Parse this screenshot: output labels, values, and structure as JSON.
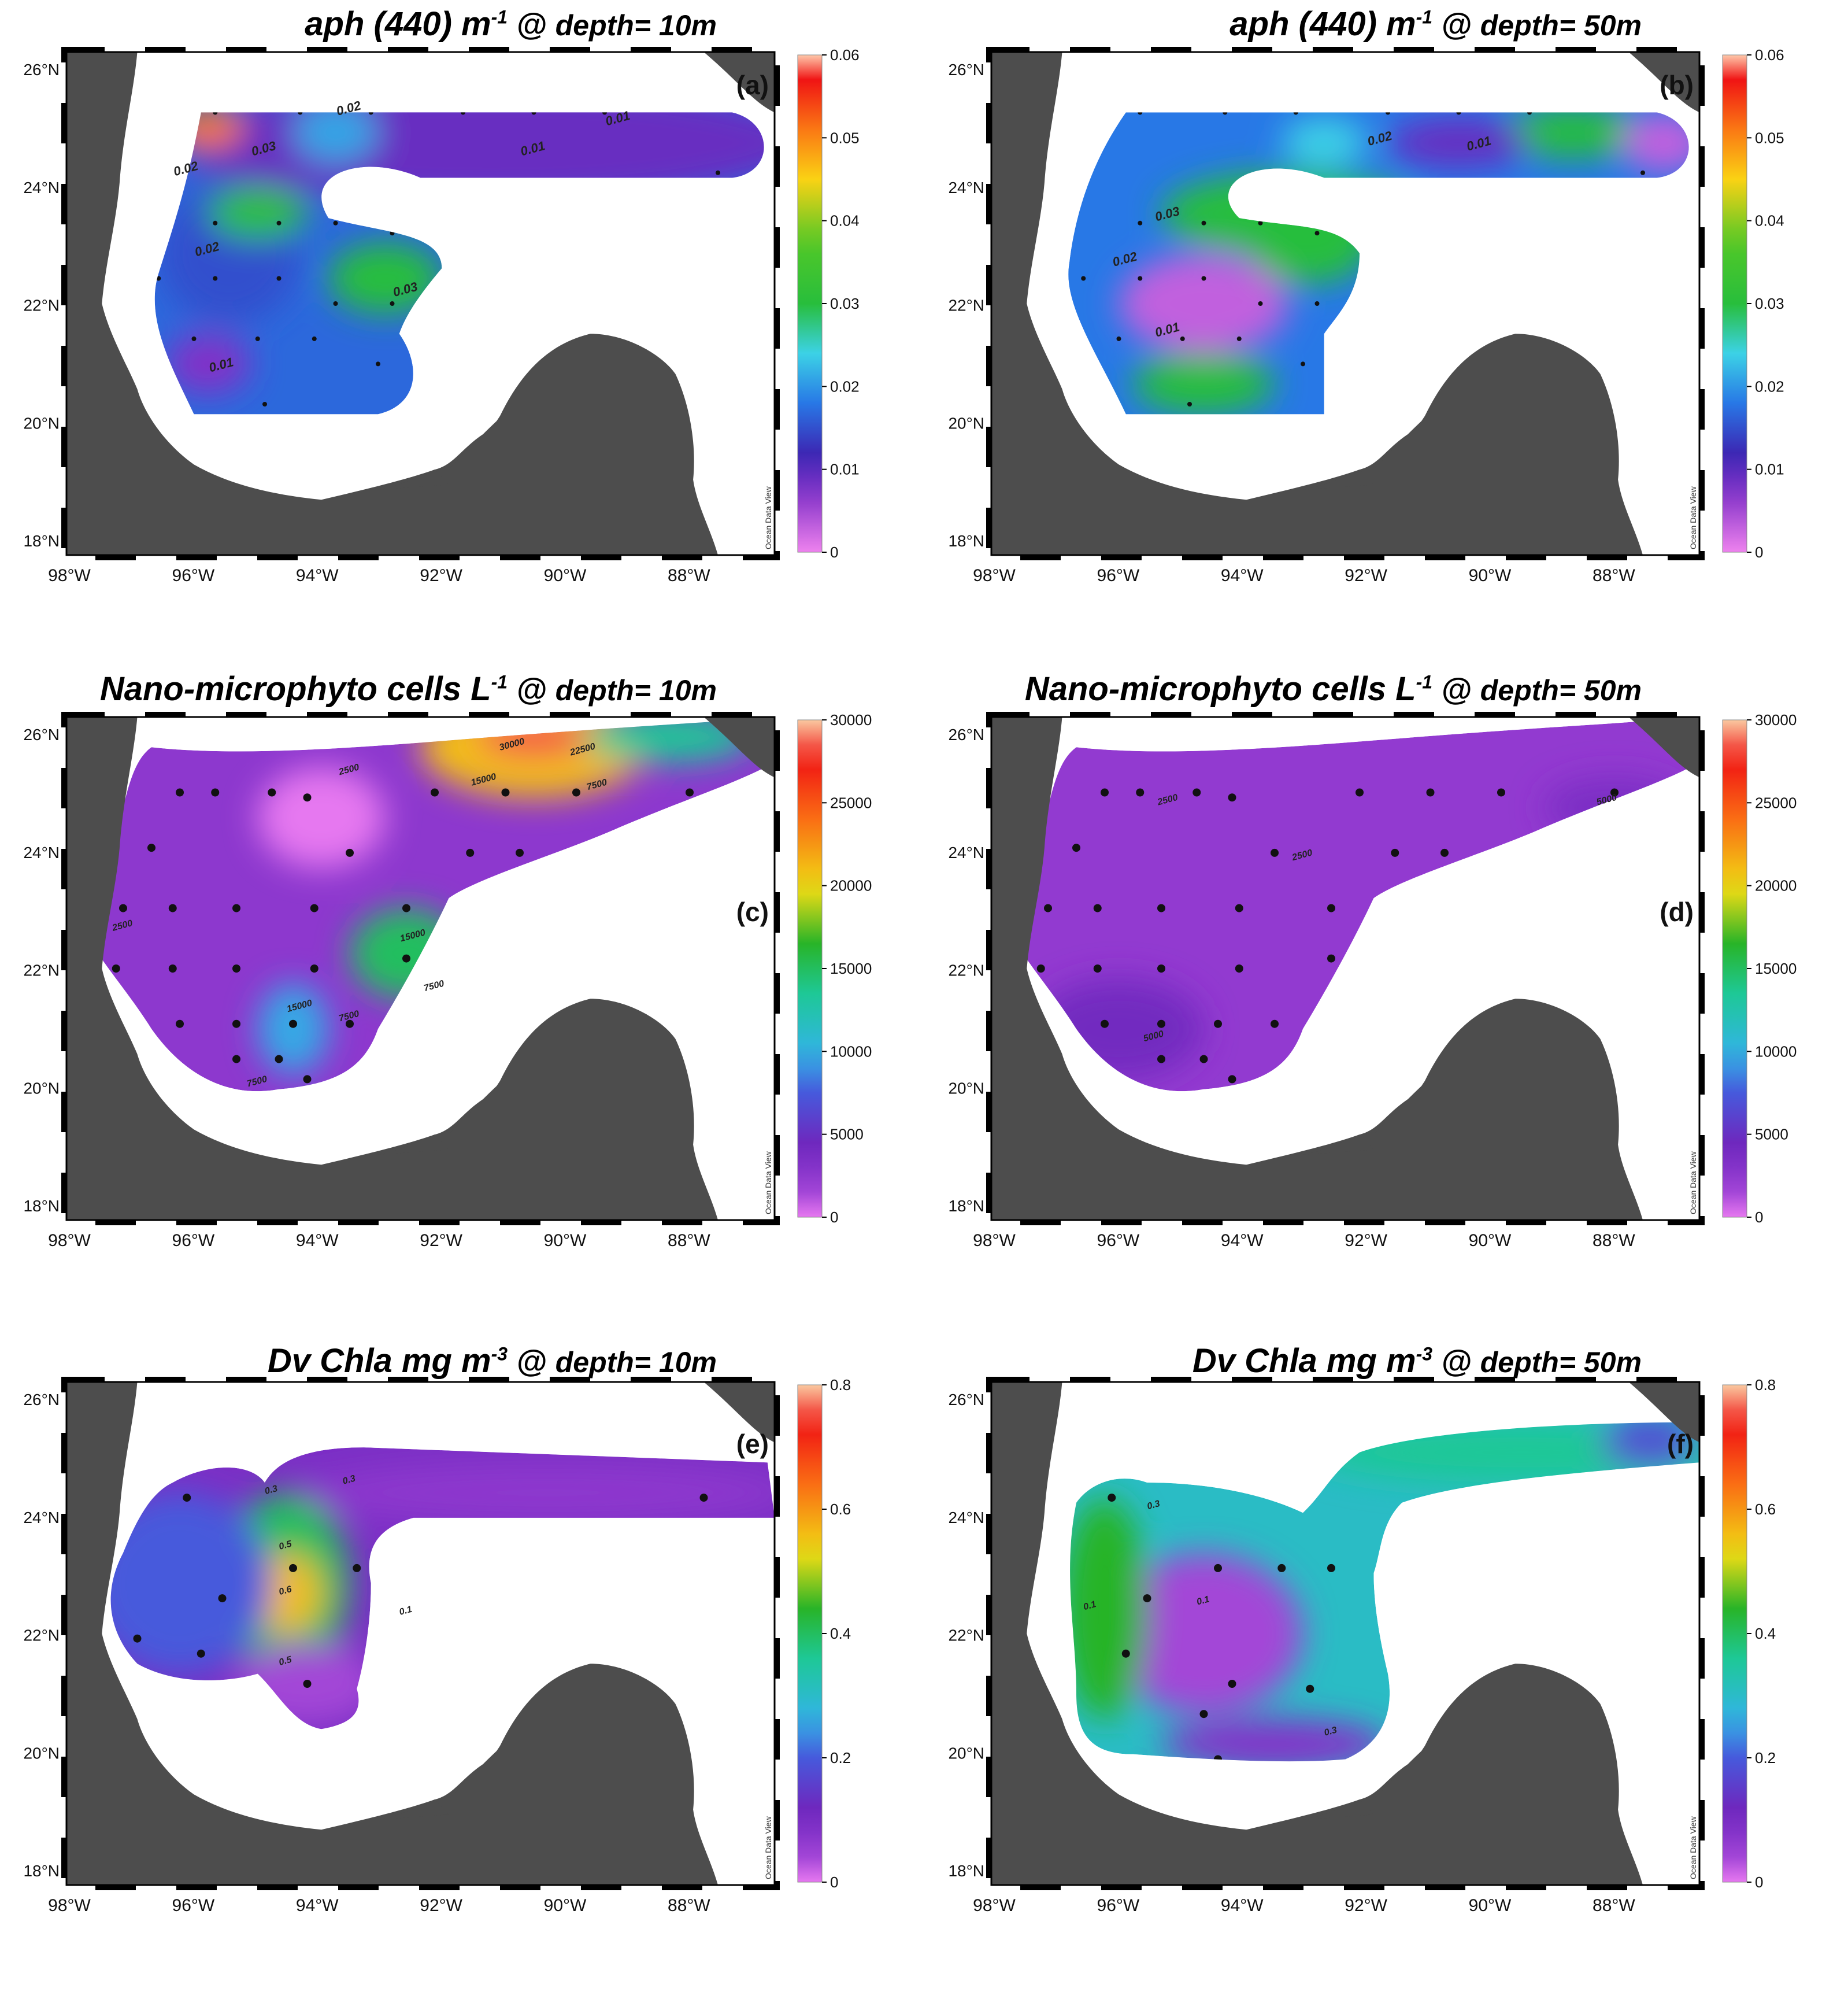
{
  "latitude_ticks": [
    "26°N",
    "24°N",
    "22°N",
    "20°N",
    "18°N"
  ],
  "longitude_ticks": [
    "98°W",
    "96°W",
    "94°W",
    "92°W",
    "90°W",
    "88°W"
  ],
  "credit_text": "Ocean Data View",
  "colors": {
    "land": "#4d4d4d",
    "frame": "#000000"
  },
  "panels": [
    {
      "label": "(a)",
      "title_main": "aph (440) m",
      "title_sup": "-1",
      "title_at": "@",
      "title_depth": "depth= 10m",
      "colorbar": {
        "ticks": [
          "0",
          "0.01",
          "0.02",
          "0.03",
          "0.04",
          "0.05",
          "0.06"
        ],
        "min": 0,
        "max": 0.06
      },
      "contour_labels": [
        "0.03",
        "0.02",
        "0.02",
        "0.01",
        "0.03",
        "0.02",
        "0.01",
        "0.01"
      ]
    },
    {
      "label": "(b)",
      "title_main": "aph (440) m",
      "title_sup": "-1",
      "title_at": "@",
      "title_depth": "depth= 50m",
      "colorbar": {
        "ticks": [
          "0",
          "0.01",
          "0.02",
          "0.03",
          "0.04",
          "0.05",
          "0.06"
        ],
        "min": 0,
        "max": 0.06
      },
      "contour_labels": [
        "0.02",
        "0.01",
        "0.03",
        "0.02",
        "0.01"
      ]
    },
    {
      "label": "(c)",
      "title_main": "Nano-microphyto cells L",
      "title_sup": "-1",
      "title_at": "@",
      "title_depth": "depth= 10m",
      "colorbar": {
        "ticks": [
          "0",
          "5000",
          "10000",
          "15000",
          "20000",
          "25000",
          "30000"
        ],
        "min": 0,
        "max": 30000
      },
      "contour_labels": [
        "30000",
        "22500",
        "15000",
        "7500",
        "2500",
        "15000",
        "7500",
        "7500",
        "15000",
        "2500",
        "7500"
      ]
    },
    {
      "label": "(d)",
      "title_main": "Nano-microphyto cells L",
      "title_sup": "-1",
      "title_at": "@",
      "title_depth": "depth= 50m",
      "colorbar": {
        "ticks": [
          "0",
          "5000",
          "10000",
          "15000",
          "20000",
          "25000",
          "30000"
        ],
        "min": 0,
        "max": 30000
      },
      "contour_labels": [
        "2500",
        "5000",
        "2500",
        "5000"
      ]
    },
    {
      "label": "(e)",
      "title_main": "Dv Chla mg m",
      "title_sup": "-3",
      "title_at": "@",
      "title_depth": "depth= 10m",
      "colorbar": {
        "ticks": [
          "0",
          "0.2",
          "0.4",
          "0.6",
          "0.8"
        ],
        "min": 0,
        "max": 0.8
      },
      "contour_labels": [
        "0.3",
        "0.5",
        "0.6",
        "0.5",
        "0.3",
        "0.1"
      ]
    },
    {
      "label": "(f)",
      "title_main": "Dv Chla mg m",
      "title_sup": "-3",
      "title_at": "@",
      "title_depth": "depth= 50m",
      "colorbar": {
        "ticks": [
          "0",
          "0.2",
          "0.4",
          "0.6",
          "0.8"
        ],
        "min": 0,
        "max": 0.8
      },
      "contour_labels": [
        "0.3",
        "0.1",
        "0.1",
        "0.3"
      ]
    }
  ]
}
